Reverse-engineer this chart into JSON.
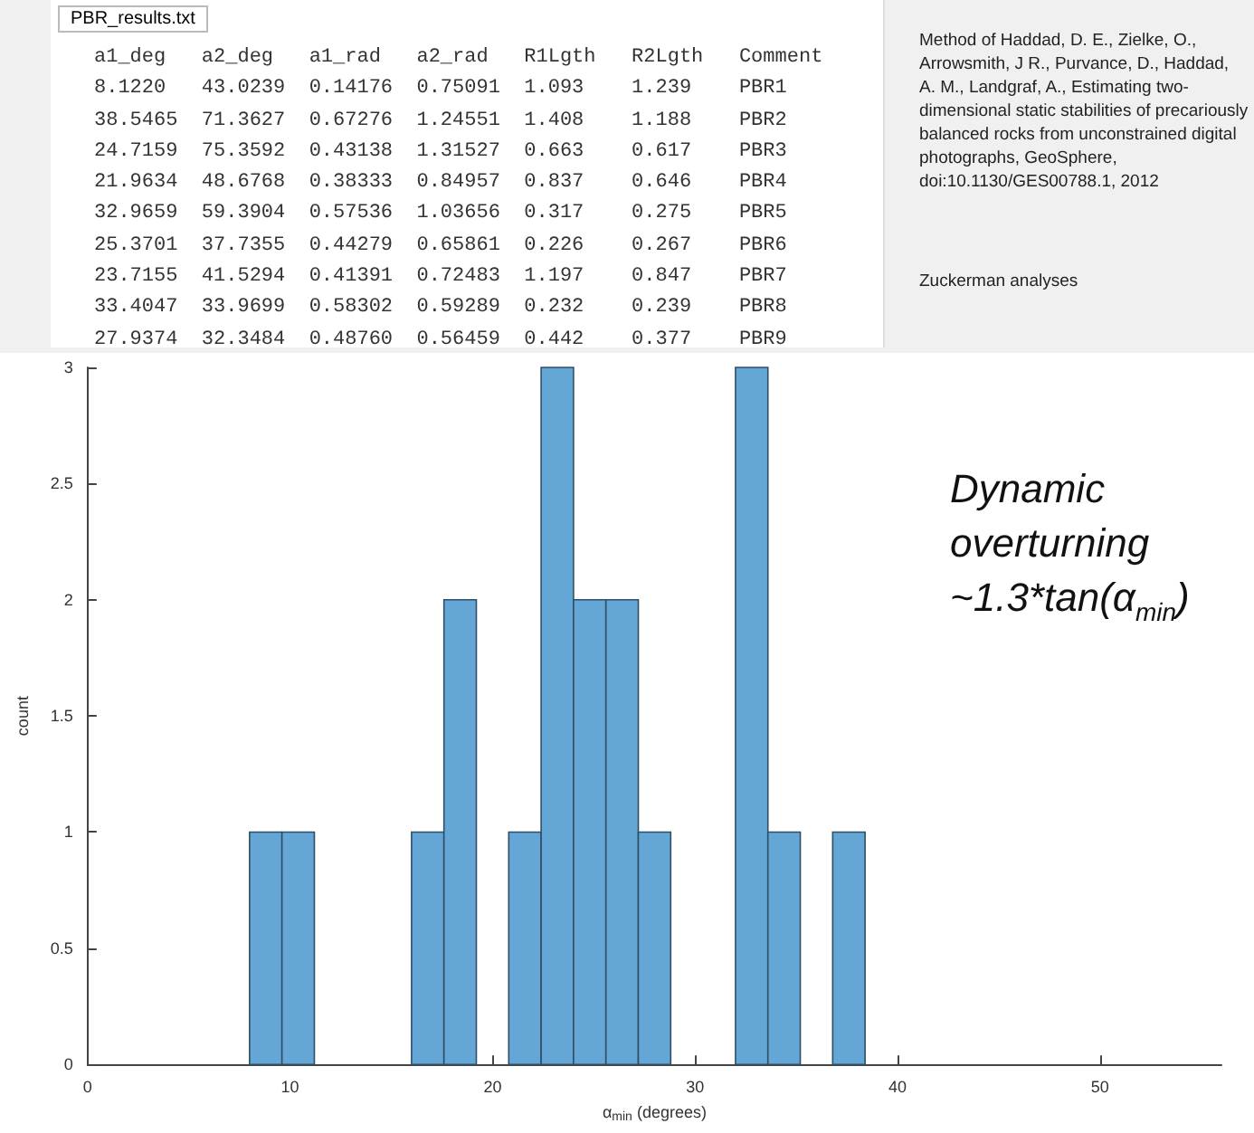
{
  "chart_data": {
    "type": "histogram",
    "xlabel": "α$_{min}$ (degrees)",
    "ylabel": "count",
    "color": "#64a7d6",
    "bins": [
      8.0,
      9.6,
      11.2,
      12.8,
      14.4,
      16.0,
      17.6,
      19.2,
      20.8,
      22.4,
      24.0,
      25.6,
      27.2,
      28.8,
      30.4,
      32.0,
      33.6,
      35.2,
      36.8,
      38.4
    ],
    "values": [
      1,
      1,
      0,
      0,
      0,
      1,
      2,
      0,
      1,
      3,
      2,
      2,
      1,
      0,
      0,
      3,
      1,
      0,
      1
    ],
    "xlim": [
      0,
      56
    ],
    "xticks": [
      0,
      10,
      20,
      30,
      40,
      50
    ],
    "ylim": [
      0,
      3
    ],
    "yticks": [
      0,
      0.5,
      1,
      1.5,
      2,
      2.5,
      3
    ],
    "grid": false,
    "annotations": [
      "Dynamic overturning ~1.3*tan(α$_{min}$)",
      "PBR_results.txt",
      "a1_deg   a2_deg   a1_rad   a2_rad   R1Lgth   R2Lgth   Comment",
      "8.1220   43.0239  0.14176  0.75091  1.093    1.239    PBR1",
      "38.5465  71.3627  0.67276  1.24551  1.408    1.188    PBR2",
      "24.7159  75.3592  0.43138  1.31527  0.663    0.617    PBR3",
      "21.9634  48.6768  0.38333  0.84957  0.837    0.646    PBR4",
      "32.9659  59.3904  0.57536  1.03656  0.317    0.275    PBR5",
      "25.3701  37.7355  0.44279  0.65861  0.226    0.267    PBR6",
      "23.7155  41.5294  0.41391  0.72483  1.197    0.847    PBR7",
      "33.4047  33.9699  0.58302  0.59289  0.232    0.239    PBR8",
      "27.9374  32.3484  0.48760  0.56459  0.442    0.377    PBR9",
      "Method of Haddad, D. E., Zielke, O., Arrowsmith, J R., Purvance, D., Haddad, A. M., Landgraf, A., Estimating two-dimensional static stabilities of precariously balanced rocks from unconstrained digital photographs, GeoSphere, doi:10.1130/GES00788.1, 2012",
      "Zuckerman analyses"
    ]
  }
}
